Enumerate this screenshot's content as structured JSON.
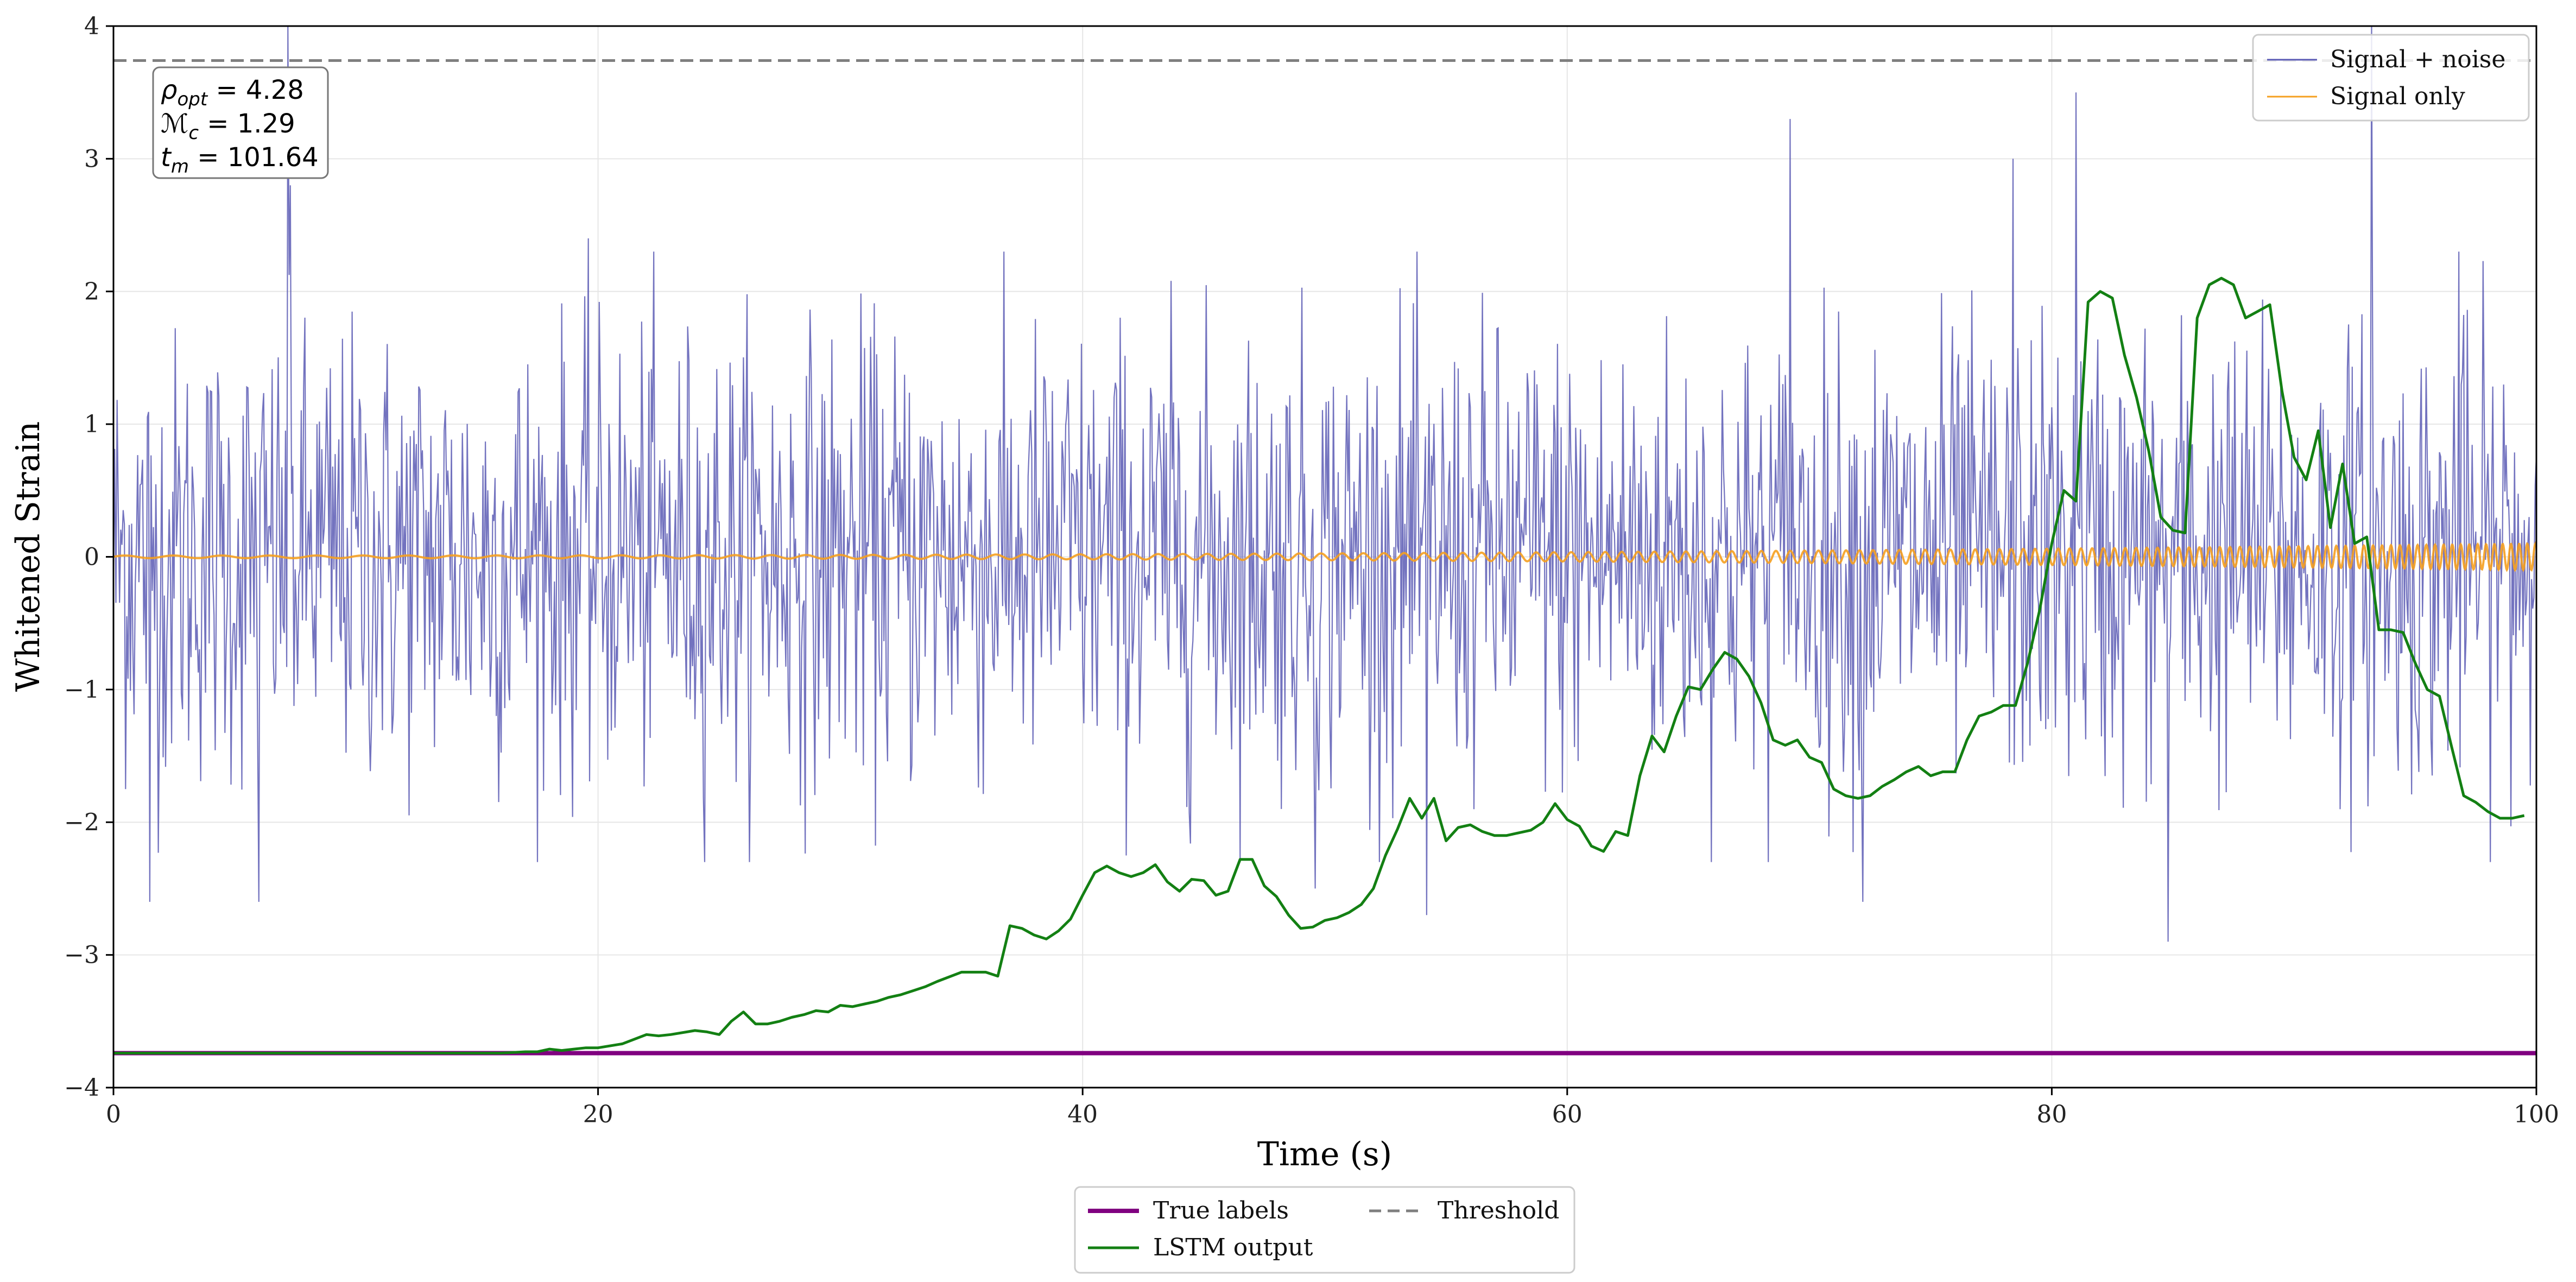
{
  "chart_data": {
    "type": "line",
    "title": "",
    "xlabel": "Time (s)",
    "ylabel": "Whitened Strain",
    "xlim": [
      0,
      100
    ],
    "ylim": [
      -4,
      4
    ],
    "xticks": [
      0,
      20,
      40,
      60,
      80,
      100
    ],
    "yticks": [
      -4,
      -3,
      -2,
      -1,
      0,
      1,
      2,
      3,
      4
    ],
    "xtick_labels": [
      "0",
      "20",
      "40",
      "60",
      "80",
      "100"
    ],
    "ytick_labels": [
      "−4",
      "−3",
      "−2",
      "−1",
      "0",
      "1",
      "2",
      "3",
      "4"
    ],
    "grid": true,
    "annotation": {
      "rho_symbol": "ρ",
      "rho_sub": "opt",
      "rho_value": " = 4.28",
      "mc_symbol": "ℳ",
      "mc_sub": "c",
      "mc_value": " = 1.29",
      "tm_symbol": "t",
      "tm_sub": "m",
      "tm_value": " = 101.64"
    },
    "series": [
      {
        "name": "Signal + noise",
        "color": "#5a5ab4",
        "style": "thin line",
        "description_stats": {
          "sample_step_s": 0.05,
          "noise_sigma": 0.85,
          "peaks": [
            [
              7.2,
              4.0
            ],
            [
              7.3,
              2.8
            ],
            [
              19.6,
              2.4
            ],
            [
              69.2,
              3.3
            ],
            [
              78.4,
              3.0
            ],
            [
              81.0,
              3.5
            ],
            [
              93.2,
              4.0
            ],
            [
              96.8,
              2.3
            ],
            [
              6.0,
              -2.6
            ],
            [
              1.5,
              -2.6
            ],
            [
              72.2,
              -2.6
            ],
            [
              84.8,
              -2.9
            ],
            [
              54.2,
              -2.7
            ],
            [
              49.6,
              -2.5
            ]
          ]
        }
      },
      {
        "name": "Signal only",
        "color": "#f5a020",
        "style": "chirp",
        "description_stats": {
          "amplitude_start": 0.01,
          "amplitude_end": 0.1,
          "freq_start_hz": 0.5,
          "freq_end_hz": 3.0
        }
      },
      {
        "name": "LSTM output",
        "color": "#138013",
        "x": [
          0,
          5,
          10,
          15,
          16,
          17,
          17.5,
          18,
          18.5,
          19,
          19.5,
          20,
          21,
          22,
          22.5,
          23,
          24,
          24.5,
          25,
          25.5,
          26,
          26.5,
          27,
          27.5,
          28,
          28.5,
          29,
          29.5,
          30,
          30.5,
          31,
          31.5,
          32,
          32.5,
          33,
          33.5,
          34,
          35,
          36,
          36.5,
          37,
          37.5,
          38,
          38.5,
          39,
          39.5,
          40,
          40.5,
          41,
          41.5,
          42,
          42.5,
          43,
          43.5,
          44,
          44.5,
          45,
          45.5,
          46,
          46.5,
          47,
          47.5,
          48,
          48.5,
          49,
          49.5,
          50,
          50.5,
          51,
          51.5,
          52,
          52.5,
          53,
          53.5,
          54,
          54.5,
          55,
          55.5,
          56,
          56.5,
          57,
          57.5,
          58,
          58.5,
          59,
          59.5,
          60,
          60.5,
          61,
          61.5,
          62,
          62.5,
          63,
          63.5,
          64,
          64.5,
          65,
          65.5,
          66,
          66.5,
          67,
          67.5,
          68,
          68.5,
          69,
          69.5,
          70,
          70.5,
          71,
          71.5,
          72,
          72.5,
          73,
          73.5,
          74,
          74.5,
          75,
          75.5,
          76,
          76.5,
          77,
          77.5,
          78,
          78.5,
          79,
          79.5,
          80,
          80.5,
          81,
          81.5,
          82,
          82.5,
          83,
          83.5,
          84,
          84.5,
          85,
          85.5,
          86,
          86.5,
          87,
          87.5,
          88,
          88.5,
          89,
          89.5,
          90,
          90.5,
          91,
          91.5,
          92,
          92.5,
          93,
          93.5,
          94,
          94.5,
          95,
          95.5,
          96,
          96.5,
          97,
          97.5,
          98,
          98.5,
          99,
          99.5
        ],
        "values": [
          -3.74,
          -3.74,
          -3.74,
          -3.74,
          -3.74,
          -3.73,
          -3.73,
          -3.71,
          -3.72,
          -3.71,
          -3.7,
          -3.7,
          -3.67,
          -3.6,
          -3.61,
          -3.6,
          -3.57,
          -3.58,
          -3.6,
          -3.5,
          -3.43,
          -3.52,
          -3.52,
          -3.5,
          -3.47,
          -3.45,
          -3.42,
          -3.43,
          -3.38,
          -3.39,
          -3.37,
          -3.35,
          -3.32,
          -3.3,
          -3.27,
          -3.24,
          -3.2,
          -3.13,
          -3.13,
          -3.16,
          -2.78,
          -2.8,
          -2.85,
          -2.88,
          -2.82,
          -2.73,
          -2.55,
          -2.38,
          -2.33,
          -2.38,
          -2.41,
          -2.38,
          -2.32,
          -2.45,
          -2.52,
          -2.43,
          -2.44,
          -2.55,
          -2.52,
          -2.28,
          -2.28,
          -2.48,
          -2.56,
          -2.7,
          -2.8,
          -2.79,
          -2.74,
          -2.72,
          -2.68,
          -2.62,
          -2.5,
          -2.25,
          -2.05,
          -1.82,
          -1.97,
          -1.82,
          -2.14,
          -2.04,
          -2.02,
          -2.07,
          -2.1,
          -2.1,
          -2.08,
          -2.06,
          -2.0,
          -1.86,
          -1.98,
          -2.03,
          -2.18,
          -2.22,
          -2.07,
          -2.1,
          -1.65,
          -1.35,
          -1.47,
          -1.2,
          -0.98,
          -1.0,
          -0.85,
          -0.72,
          -0.77,
          -0.9,
          -1.1,
          -1.38,
          -1.42,
          -1.38,
          -1.51,
          -1.55,
          -1.75,
          -1.8,
          -1.82,
          -1.8,
          -1.73,
          -1.68,
          -1.62,
          -1.58,
          -1.65,
          -1.62,
          -1.62,
          -1.38,
          -1.2,
          -1.17,
          -1.12,
          -1.12,
          -0.8,
          -0.4,
          0.1,
          0.5,
          0.42,
          1.92,
          2.0,
          1.95,
          1.52,
          1.2,
          0.8,
          0.3,
          0.2,
          0.18,
          1.8,
          2.05,
          2.1,
          2.05,
          1.8,
          1.85,
          1.9,
          1.25,
          0.75,
          0.58,
          0.95,
          0.22,
          0.7,
          0.1,
          0.15,
          -0.55,
          -0.55,
          -0.57,
          -0.8,
          -1.0,
          -1.05,
          -1.43,
          -1.8,
          -1.85,
          -1.92,
          -1.97,
          -1.97,
          -1.95
        ]
      },
      {
        "name": "True labels",
        "color": "#800080",
        "x": [
          0,
          100
        ],
        "values": [
          -3.74,
          -3.74
        ]
      },
      {
        "name": "Threshold",
        "color": "#7f7f7f",
        "style": "dashed",
        "x": [
          0,
          100
        ],
        "values": [
          3.74,
          3.74
        ]
      }
    ],
    "legend_upper": {
      "position": "top-right",
      "entries": [
        "Signal + noise",
        "Signal only"
      ]
    },
    "legend_lower": {
      "position": "below-center",
      "entries": [
        "True labels",
        "LSTM output",
        "Threshold"
      ]
    }
  }
}
